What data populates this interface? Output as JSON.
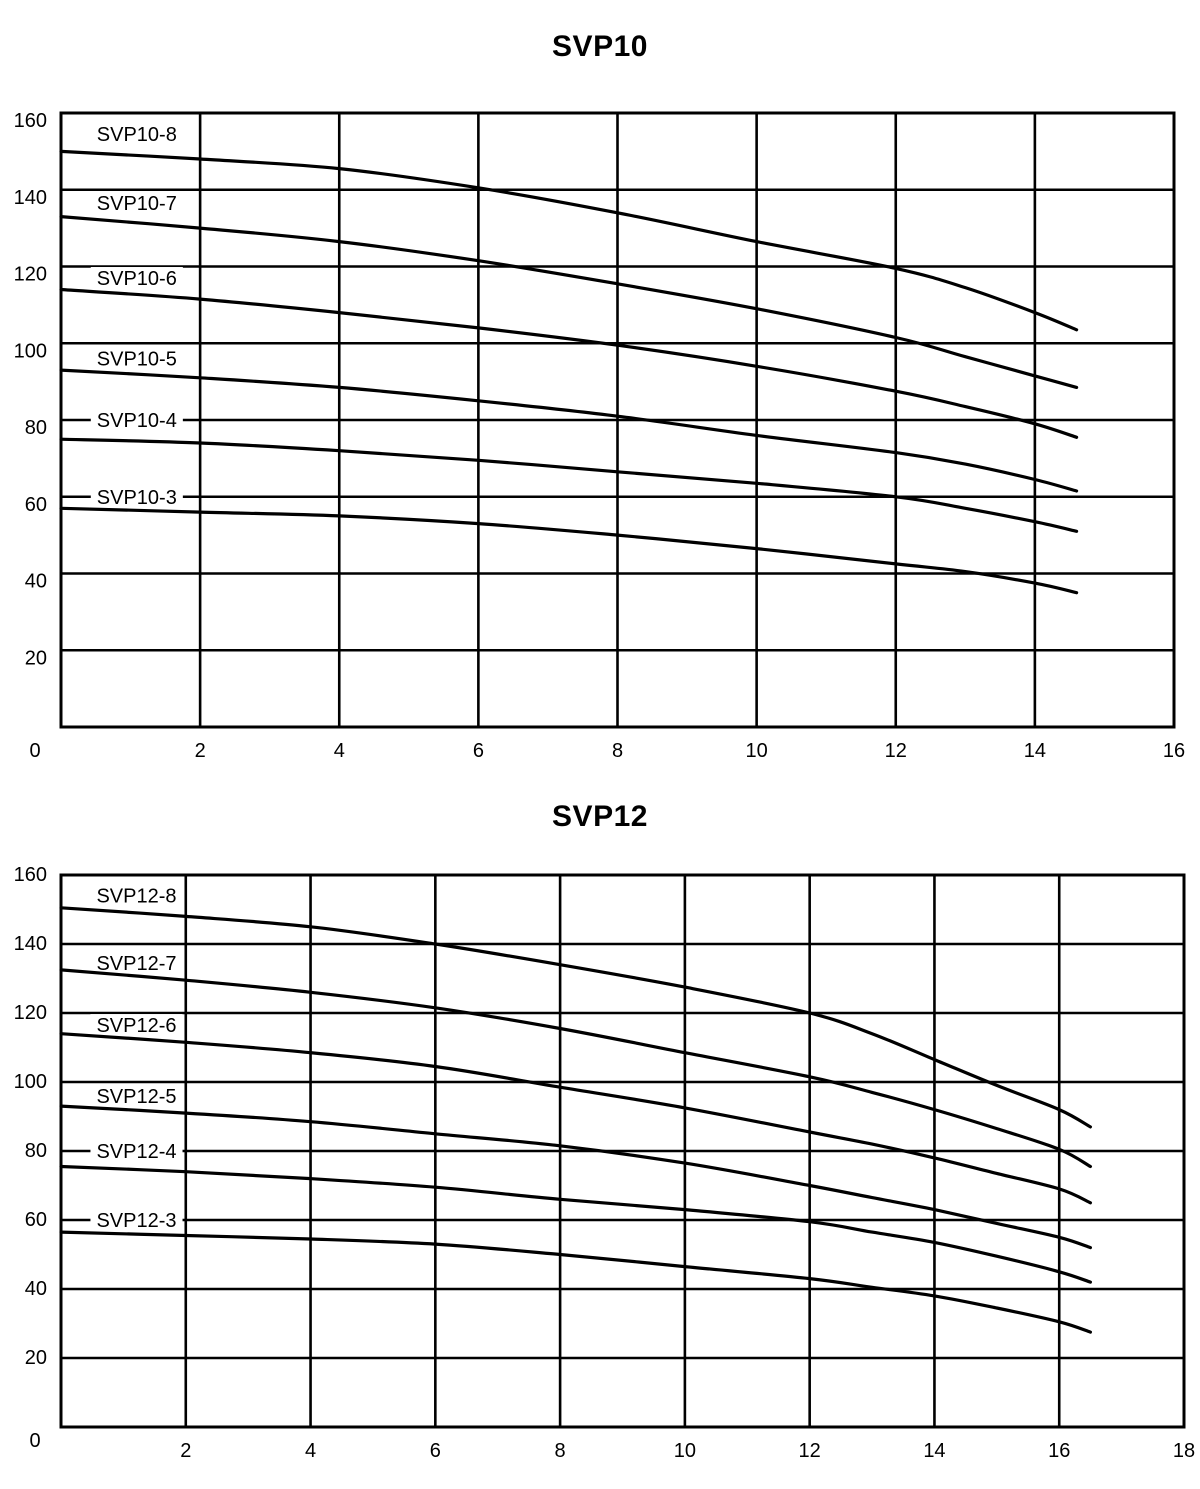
{
  "page": {
    "background": "#ffffff",
    "line_color": "#000000"
  },
  "chart_data": [
    {
      "type": "line",
      "title": "SVP10",
      "xlim": [
        0,
        16
      ],
      "ylim": [
        0,
        160
      ],
      "x_ticks": [
        0,
        2,
        4,
        6,
        8,
        10,
        12,
        14,
        16
      ],
      "y_ticks": [
        160,
        140,
        120,
        100,
        80,
        60,
        40,
        20
      ],
      "grid": true,
      "legend_position": "inline-labels",
      "series": [
        {
          "name": "SVP10-8",
          "label_pos": [
            1.09,
            154.5
          ],
          "points": [
            [
              0,
              150
            ],
            [
              2,
              148
            ],
            [
              4,
              145.5
            ],
            [
              6,
              140.5
            ],
            [
              8,
              134
            ],
            [
              10,
              126.5
            ],
            [
              12,
              119.5
            ],
            [
              13,
              114.5
            ],
            [
              14,
              108
            ],
            [
              14.6,
              103.5
            ]
          ]
        },
        {
          "name": "SVP10-7",
          "label_pos": [
            1.09,
            136.5
          ],
          "points": [
            [
              0,
              133
            ],
            [
              2,
              130
            ],
            [
              4,
              126.5
            ],
            [
              6,
              121.5
            ],
            [
              8,
              115.5
            ],
            [
              10,
              109
            ],
            [
              12,
              101.5
            ],
            [
              13,
              96.5
            ],
            [
              14,
              91.5
            ],
            [
              14.6,
              88.5
            ]
          ]
        },
        {
          "name": "SVP10-6",
          "label_pos": [
            1.09,
            117
          ],
          "points": [
            [
              0,
              114
            ],
            [
              2,
              111.5
            ],
            [
              4,
              108
            ],
            [
              6,
              104
            ],
            [
              8,
              99.5
            ],
            [
              10,
              94
            ],
            [
              12,
              87.5
            ],
            [
              13,
              83.5
            ],
            [
              14,
              79
            ],
            [
              14.6,
              75.5
            ]
          ]
        },
        {
          "name": "SVP10-5",
          "label_pos": [
            1.09,
            96
          ],
          "points": [
            [
              0,
              93
            ],
            [
              2,
              91
            ],
            [
              4,
              88.5
            ],
            [
              6,
              85
            ],
            [
              8,
              81
            ],
            [
              10,
              76
            ],
            [
              12,
              71.5
            ],
            [
              13,
              68.5
            ],
            [
              14,
              64.5
            ],
            [
              14.6,
              61.5
            ]
          ]
        },
        {
          "name": "SVP10-4",
          "label_pos": [
            1.09,
            80
          ],
          "points": [
            [
              0,
              75
            ],
            [
              2,
              74
            ],
            [
              4,
              72
            ],
            [
              6,
              69.5
            ],
            [
              8,
              66.5
            ],
            [
              10,
              63.5
            ],
            [
              12,
              60
            ],
            [
              13,
              57
            ],
            [
              14,
              53.5
            ],
            [
              14.6,
              51
            ]
          ]
        },
        {
          "name": "SVP10-3",
          "label_pos": [
            1.09,
            60
          ],
          "points": [
            [
              0,
              57
            ],
            [
              2,
              56
            ],
            [
              4,
              55
            ],
            [
              6,
              53
            ],
            [
              8,
              50
            ],
            [
              10,
              46.5
            ],
            [
              12,
              42.5
            ],
            [
              13,
              40.5
            ],
            [
              14,
              37.5
            ],
            [
              14.6,
              35
            ]
          ]
        }
      ]
    },
    {
      "type": "line",
      "title": "SVP12",
      "xlim": [
        0,
        18
      ],
      "ylim": [
        0,
        160
      ],
      "x_ticks": [
        0,
        2,
        4,
        6,
        8,
        10,
        12,
        14,
        16,
        18
      ],
      "y_ticks": [
        160,
        140,
        120,
        100,
        80,
        60,
        40,
        20
      ],
      "grid": true,
      "legend_position": "inline-labels",
      "series": [
        {
          "name": "SVP12-8",
          "label_pos": [
            1.21,
            154
          ],
          "points": [
            [
              0,
              150.5
            ],
            [
              2,
              148
            ],
            [
              4,
              145
            ],
            [
              6,
              140
            ],
            [
              8,
              134
            ],
            [
              10,
              127.5
            ],
            [
              12,
              120
            ],
            [
              13,
              114
            ],
            [
              14,
              106.5
            ],
            [
              15,
              99
            ],
            [
              16,
              92
            ],
            [
              16.5,
              87
            ]
          ]
        },
        {
          "name": "SVP12-7",
          "label_pos": [
            1.21,
            134.5
          ],
          "points": [
            [
              0,
              132.5
            ],
            [
              2,
              129.5
            ],
            [
              4,
              126
            ],
            [
              6,
              121.5
            ],
            [
              8,
              115.5
            ],
            [
              10,
              108.5
            ],
            [
              12,
              101.5
            ],
            [
              13,
              97
            ],
            [
              14,
              92
            ],
            [
              15,
              86.5
            ],
            [
              16,
              80.5
            ],
            [
              16.5,
              75.5
            ]
          ]
        },
        {
          "name": "SVP12-6",
          "label_pos": [
            1.21,
            116.5
          ],
          "points": [
            [
              0,
              114
            ],
            [
              2,
              111.5
            ],
            [
              4,
              108.5
            ],
            [
              6,
              104.5
            ],
            [
              8,
              98.5
            ],
            [
              10,
              92.5
            ],
            [
              12,
              85.5
            ],
            [
              13,
              82
            ],
            [
              14,
              78
            ],
            [
              15,
              73.5
            ],
            [
              16,
              69
            ],
            [
              16.5,
              65
            ]
          ]
        },
        {
          "name": "SVP12-5",
          "label_pos": [
            1.21,
            96
          ],
          "points": [
            [
              0,
              93
            ],
            [
              2,
              91
            ],
            [
              4,
              88.5
            ],
            [
              6,
              85
            ],
            [
              8,
              81.5
            ],
            [
              10,
              76.5
            ],
            [
              12,
              70
            ],
            [
              13,
              66.5
            ],
            [
              14,
              63
            ],
            [
              15,
              59
            ],
            [
              16,
              55
            ],
            [
              16.5,
              52
            ]
          ]
        },
        {
          "name": "SVP12-4",
          "label_pos": [
            1.21,
            80
          ],
          "points": [
            [
              0,
              75.5
            ],
            [
              2,
              74
            ],
            [
              4,
              72
            ],
            [
              6,
              69.5
            ],
            [
              8,
              66
            ],
            [
              10,
              63
            ],
            [
              12,
              59.5
            ],
            [
              13,
              56.5
            ],
            [
              14,
              53.5
            ],
            [
              15,
              49.5
            ],
            [
              16,
              45
            ],
            [
              16.5,
              42
            ]
          ]
        },
        {
          "name": "SVP12-3",
          "label_pos": [
            1.21,
            60
          ],
          "points": [
            [
              0,
              56.5
            ],
            [
              2,
              55.5
            ],
            [
              4,
              54.5
            ],
            [
              6,
              53
            ],
            [
              8,
              50
            ],
            [
              10,
              46.5
            ],
            [
              12,
              43
            ],
            [
              13,
              40.5
            ],
            [
              14,
              38
            ],
            [
              15,
              34.5
            ],
            [
              16,
              30.5
            ],
            [
              16.5,
              27.5
            ]
          ]
        }
      ]
    }
  ]
}
